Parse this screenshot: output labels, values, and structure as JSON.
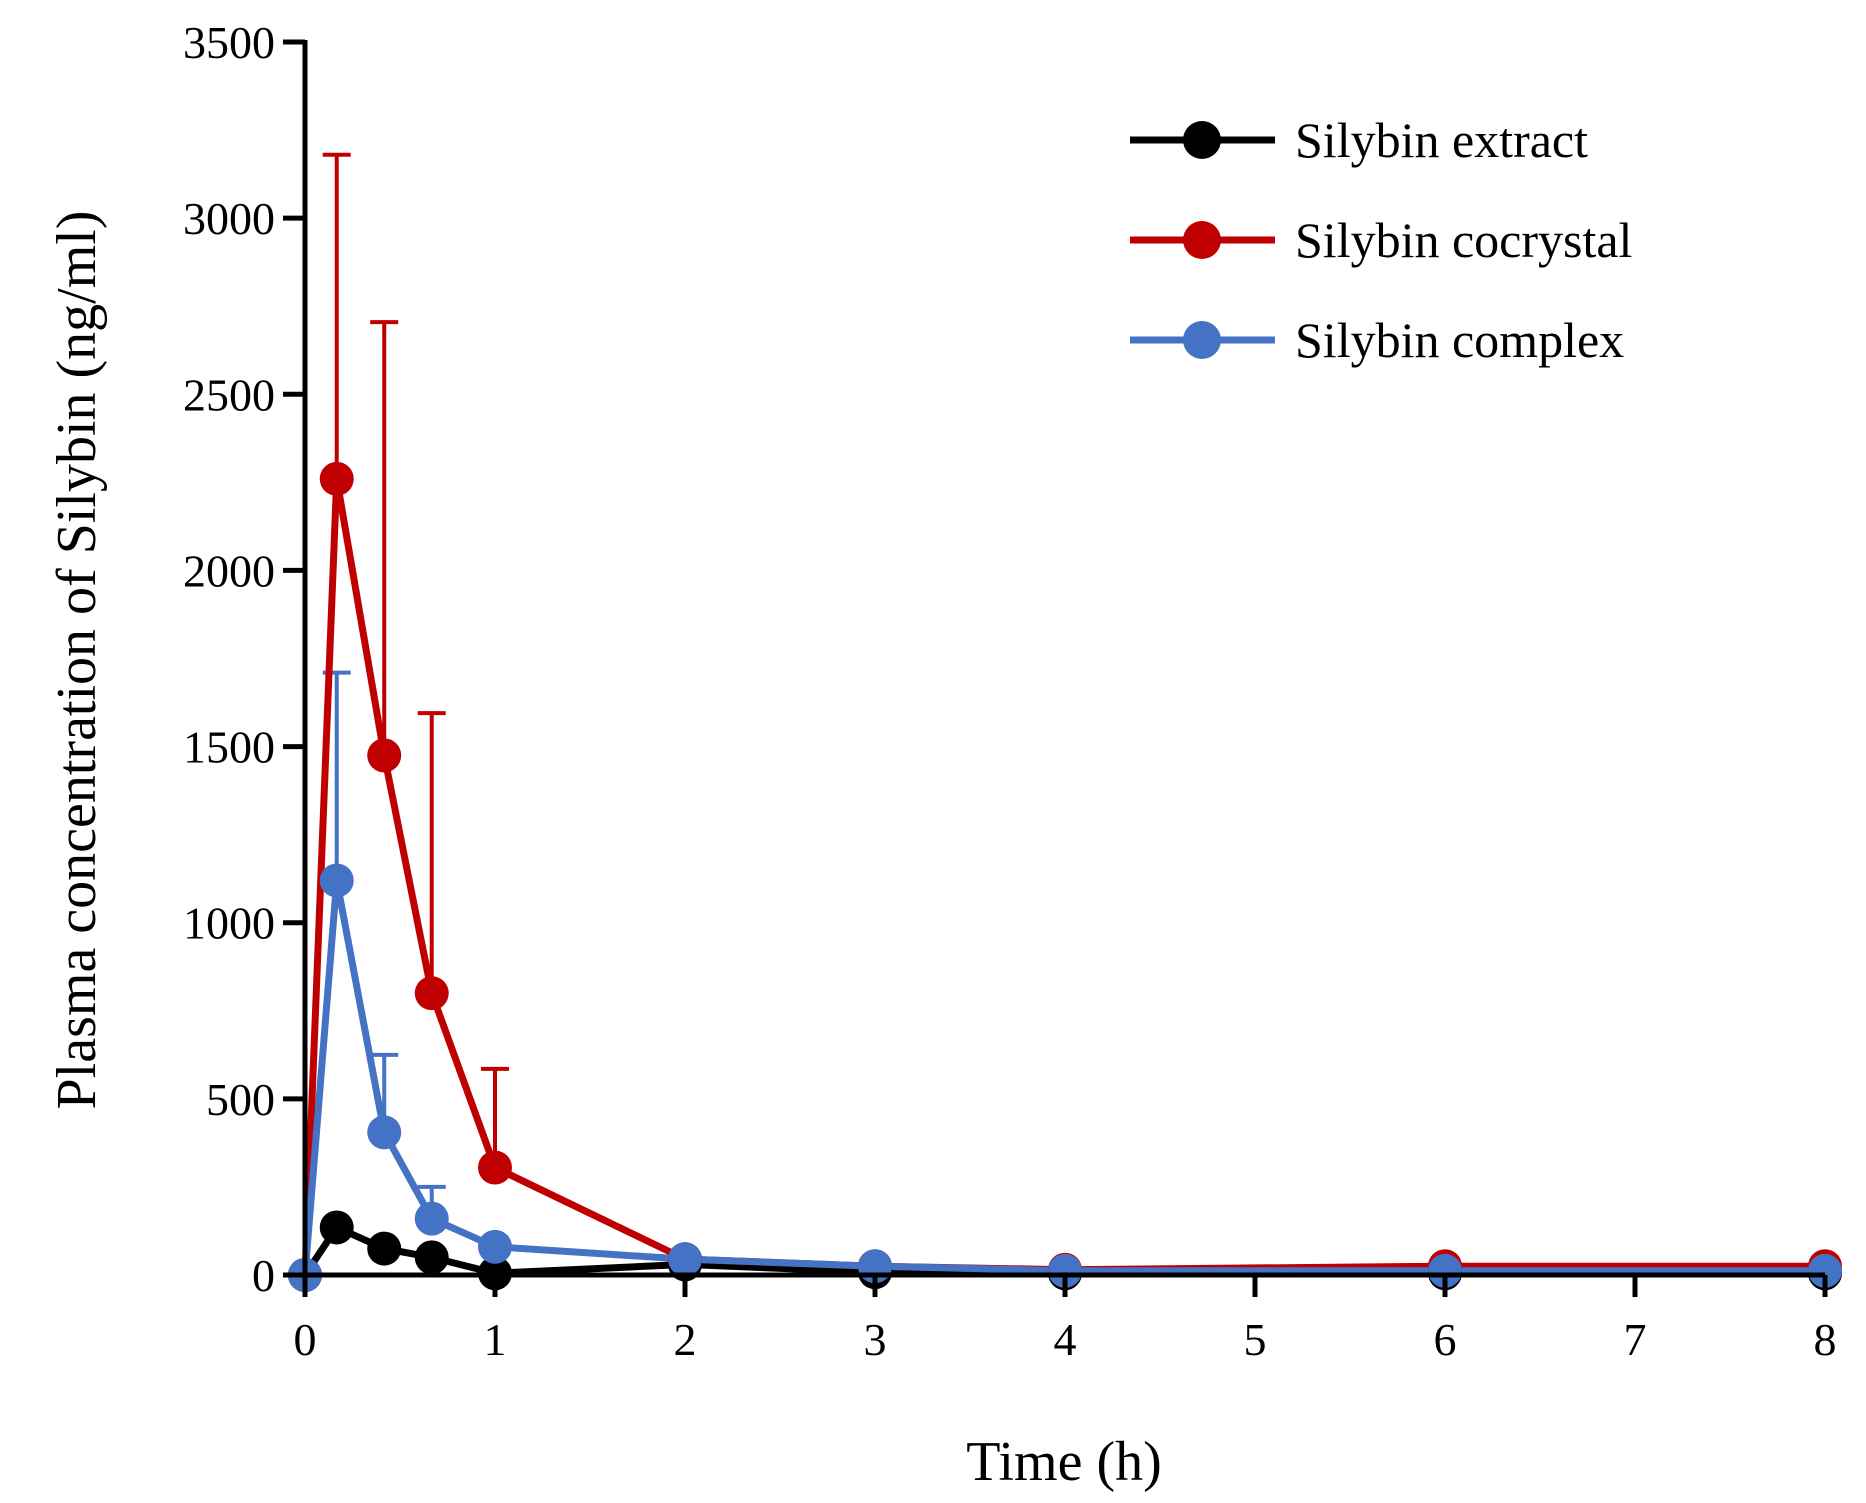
{
  "chart_data": {
    "type": "line",
    "title": "",
    "xlabel": "Time (h)",
    "ylabel": "Plasma concentration of Silybin (ng/ml)",
    "xlim": [
      0,
      8
    ],
    "ylim": [
      0,
      3500
    ],
    "xticks": [
      0,
      1,
      2,
      3,
      4,
      5,
      6,
      7,
      8
    ],
    "yticks": [
      0,
      500,
      1000,
      1500,
      2000,
      2500,
      3000,
      3500
    ],
    "grid": false,
    "legend_position": "top-right",
    "series": [
      {
        "name": "Silybin extract",
        "color": "#000000",
        "x": [
          0,
          0.167,
          0.417,
          0.667,
          1,
          2,
          3,
          4,
          6,
          8
        ],
        "y": [
          0,
          135,
          75,
          50,
          5,
          30,
          8,
          5,
          5,
          5
        ],
        "error": [
          0,
          0,
          0,
          0,
          0,
          0,
          0,
          0,
          0,
          0
        ]
      },
      {
        "name": "Silybin cocrystal",
        "color": "#c00000",
        "x": [
          0,
          0.167,
          0.417,
          0.667,
          1,
          2,
          3,
          4,
          6,
          8
        ],
        "y": [
          0,
          2260,
          1475,
          800,
          305,
          45,
          25,
          15,
          25,
          25
        ],
        "error": [
          0,
          920,
          1230,
          795,
          280,
          0,
          0,
          0,
          0,
          0
        ]
      },
      {
        "name": "Silybin complex",
        "color": "#4472c4",
        "x": [
          0,
          0.167,
          0.417,
          0.667,
          1,
          2,
          3,
          4,
          6,
          8
        ],
        "y": [
          0,
          1120,
          405,
          160,
          80,
          45,
          25,
          12,
          12,
          12
        ],
        "error": [
          0,
          590,
          220,
          90,
          0,
          0,
          0,
          0,
          0,
          0
        ]
      }
    ]
  }
}
